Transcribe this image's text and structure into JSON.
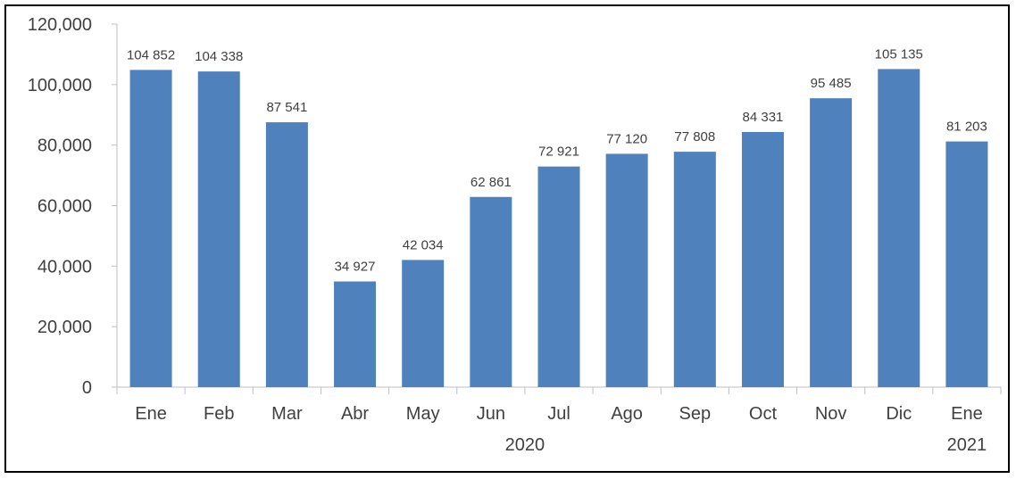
{
  "chart_data": {
    "type": "bar",
    "categories": [
      "Ene",
      "Feb",
      "Mar",
      "Abr",
      "May",
      "Jun",
      "Jul",
      "Ago",
      "Sep",
      "Oct",
      "Nov",
      "Dic",
      "Ene"
    ],
    "values": [
      104852,
      104338,
      87541,
      34927,
      42034,
      62861,
      72921,
      77120,
      77808,
      84331,
      95485,
      105135,
      81203
    ],
    "data_labels": [
      "104 852",
      "104 338",
      "87 541",
      "34 927",
      "42 034",
      "62 861",
      "72 921",
      "77 120",
      "77 808",
      "84 331",
      "95 485",
      "105 135",
      "81 203"
    ],
    "year_labels": [
      {
        "text": "2020",
        "category_from": 0,
        "category_to": 11
      },
      {
        "text": "2021",
        "category_from": 12,
        "category_to": 12
      }
    ],
    "yticks": [
      "0",
      "20,000",
      "40,000",
      "60,000",
      "80,000",
      "100,000",
      "120,000"
    ],
    "ylim": [
      0,
      120000
    ],
    "title": "",
    "xlabel": "",
    "ylabel": "",
    "grid": false,
    "bar_color": "#4f81bd"
  }
}
